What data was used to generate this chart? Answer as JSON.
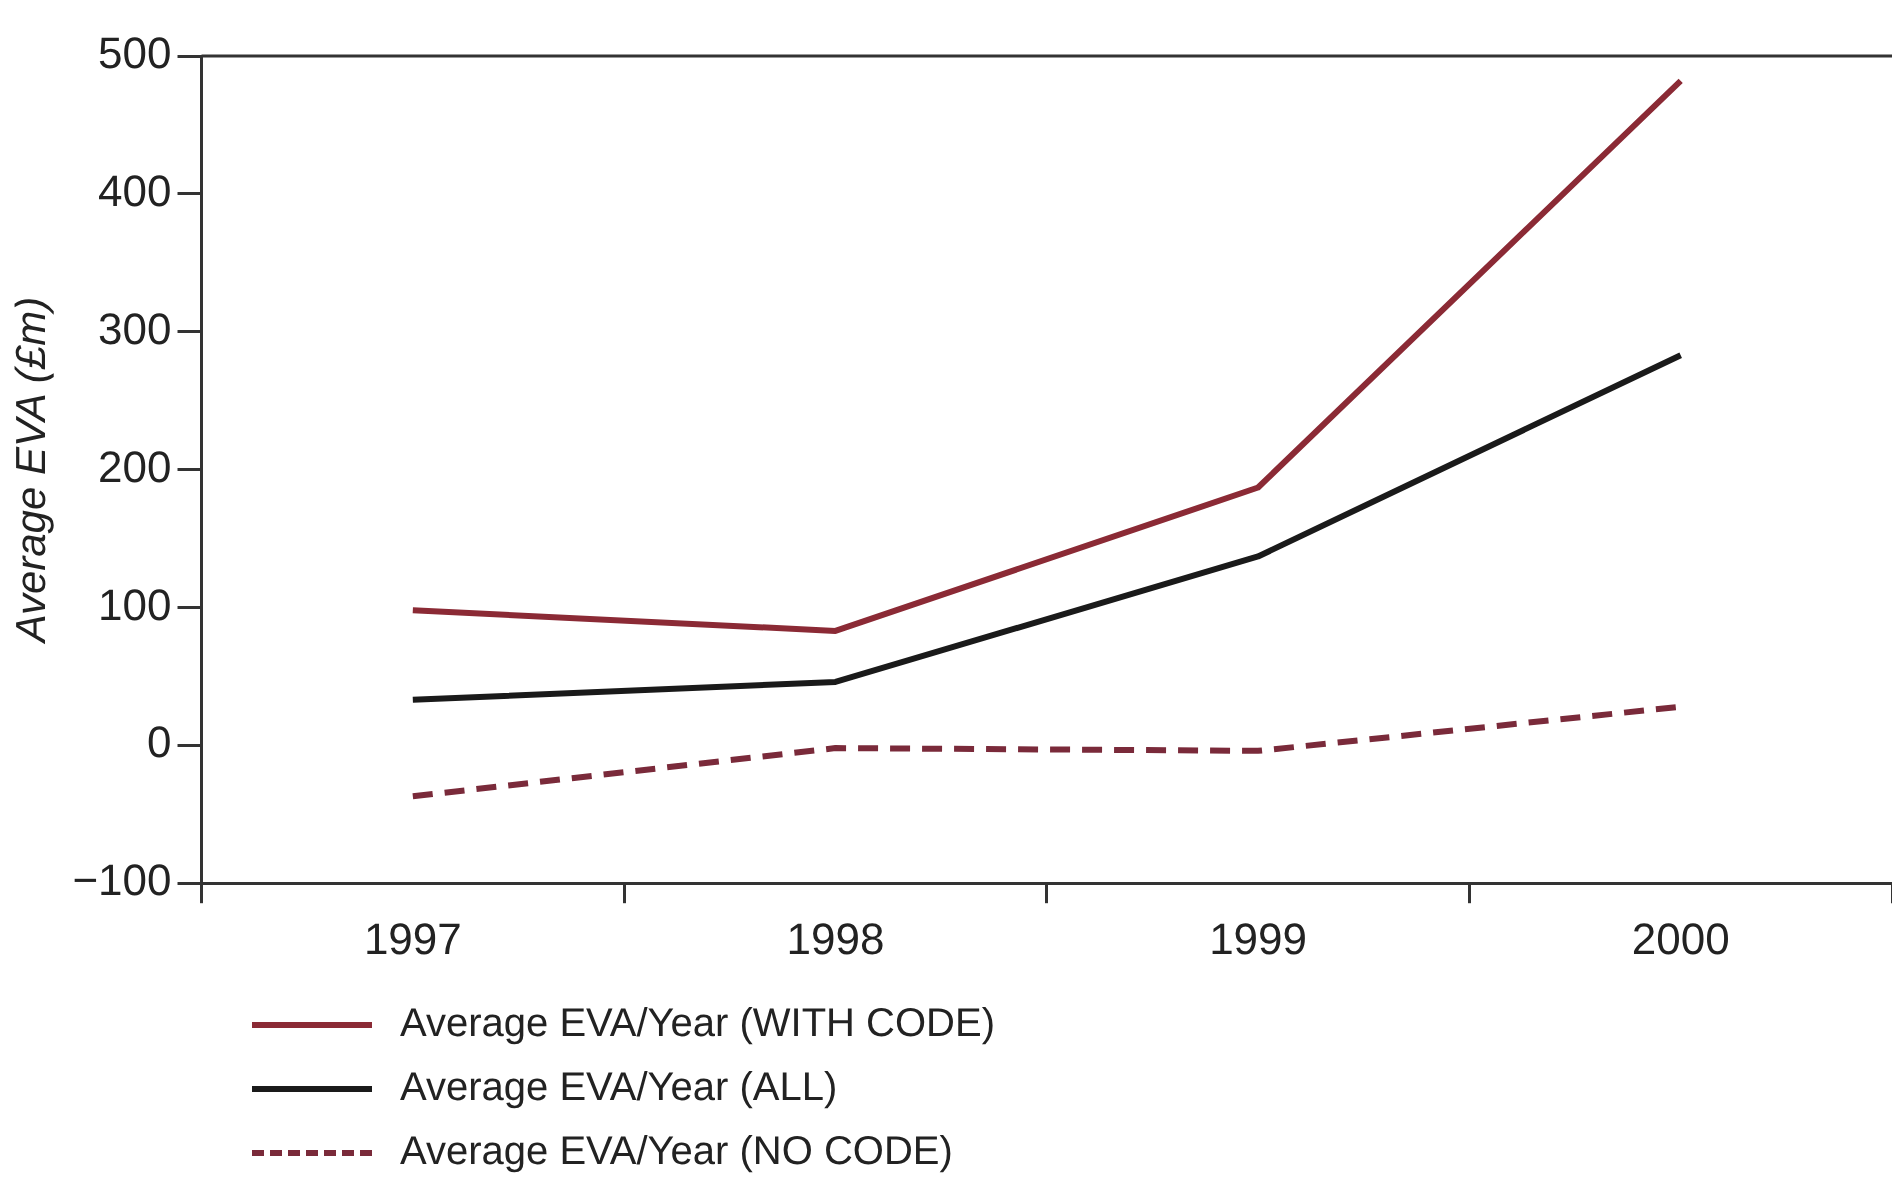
{
  "chart_data": {
    "type": "line",
    "ylabel": "Average EVA (£m)",
    "categories": [
      "1997",
      "1998",
      "1999",
      "2000"
    ],
    "series": [
      {
        "name": "Average EVA/Year (WITH CODE)",
        "color": "#8b2a35",
        "values": [
          98,
          83,
          187,
          482
        ]
      },
      {
        "name": "Average EVA/Year (ALL)",
        "color": "#1a1a1a",
        "values": [
          33,
          46,
          137,
          283
        ]
      },
      {
        "name": "Average EVA/Year (NO CODE)",
        "color": "#7a2a3a",
        "values": [
          -37,
          -2,
          -4,
          28
        ],
        "line_style": "dashed"
      }
    ],
    "ylim": [
      -100,
      500
    ],
    "yticks": [
      -100,
      0,
      100,
      200,
      300,
      400,
      500
    ],
    "grid": false,
    "legend": "bottom",
    "marker": "none",
    "line_style": "solid"
  }
}
